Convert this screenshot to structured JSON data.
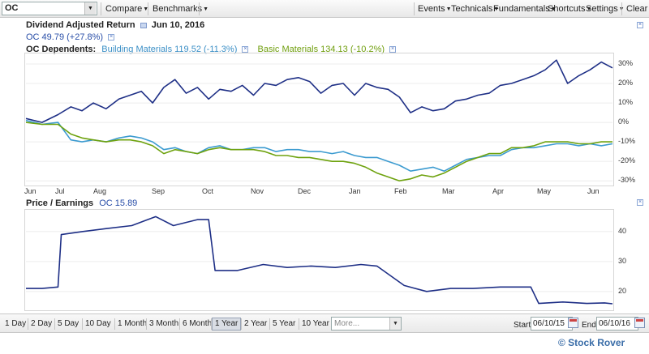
{
  "toolbar": {
    "symbol": "OC",
    "left_menus": [
      "Compare",
      "Benchmarks"
    ],
    "right_menus": [
      "Events",
      "Technicals",
      "Fundamentals",
      "Shortcuts",
      "Settings"
    ],
    "clear": "Clear"
  },
  "chart1": {
    "title": "Dividend Adjusted Return",
    "date": "Jun 10, 2016",
    "main_series": "OC 49.79 (+27.8%)",
    "dependents_label": "OC Dependents:",
    "dep1": "Building Materials 119.52 (-11.3%)",
    "dep2": "Basic Materials 134.13 (-10.2%)",
    "y_ticks": [
      "30%",
      "20%",
      "10%",
      "0%",
      "-10%",
      "-20%",
      "-30%"
    ],
    "x_ticks": [
      "Jun",
      "Jul",
      "Aug",
      "Sep",
      "Oct",
      "Nov",
      "Dec",
      "Jan",
      "Feb",
      "Mar",
      "Apr",
      "May",
      "Jun"
    ]
  },
  "chart2": {
    "title": "Price / Earnings",
    "series_label": "OC 15.89",
    "y_ticks": [
      "40",
      "30",
      "20"
    ]
  },
  "bottombar": {
    "ranges": [
      "1 Day",
      "2 Day",
      "5 Day",
      "10 Day",
      "1 Month",
      "3 Month",
      "6 Month",
      "1 Year",
      "2 Year",
      "5 Year",
      "10 Year"
    ],
    "active_range": "1 Year",
    "more_placeholder": "More...",
    "start_label": "Start",
    "start_value": "06/10/15",
    "end_label": "End",
    "end_value": "06/10/16"
  },
  "copyright": "© Stock Rover",
  "colors": {
    "oc": "#1e2f86",
    "building": "#3c9bd0",
    "basic": "#6ea20e"
  },
  "chart_data": [
    {
      "type": "line",
      "ylabel": "",
      "ylim": [
        -32,
        35
      ],
      "x": [
        "2015-06-10",
        "2015-06-20",
        "2015-06-30",
        "2015-07-08",
        "2015-07-15",
        "2015-07-22",
        "2015-07-30",
        "2015-08-07",
        "2015-08-14",
        "2015-08-21",
        "2015-08-28",
        "2015-09-04",
        "2015-09-11",
        "2015-09-18",
        "2015-09-25",
        "2015-10-02",
        "2015-10-09",
        "2015-10-16",
        "2015-10-23",
        "2015-10-30",
        "2015-11-06",
        "2015-11-13",
        "2015-11-20",
        "2015-11-27",
        "2015-12-04",
        "2015-12-11",
        "2015-12-18",
        "2015-12-25",
        "2016-01-01",
        "2016-01-08",
        "2016-01-15",
        "2016-01-22",
        "2016-01-29",
        "2016-02-05",
        "2016-02-12",
        "2016-02-19",
        "2016-02-26",
        "2016-03-04",
        "2016-03-11",
        "2016-03-18",
        "2016-03-25",
        "2016-04-01",
        "2016-04-08",
        "2016-04-15",
        "2016-04-22",
        "2016-04-29",
        "2016-05-06",
        "2016-05-13",
        "2016-05-20",
        "2016-05-27",
        "2016-06-03",
        "2016-06-10"
      ],
      "series": [
        {
          "name": "OC 49.79 (+27.8%)",
          "values": [
            2,
            0,
            4,
            8,
            6,
            10,
            7,
            12,
            14,
            16,
            10,
            18,
            22,
            15,
            18,
            12,
            17,
            16,
            19,
            14,
            20,
            19,
            22,
            23,
            21,
            15,
            19,
            20,
            14,
            20,
            18,
            17,
            13,
            5,
            8,
            6,
            7,
            11,
            12,
            14,
            15,
            19,
            20,
            22,
            24,
            27,
            32,
            20,
            24,
            27,
            31,
            28
          ]
        },
        {
          "name": "Building Materials 119.52 (-11.3%)",
          "values": [
            1,
            -1,
            0,
            -9,
            -10,
            -9,
            -10,
            -8,
            -7,
            -8,
            -10,
            -14,
            -13,
            -15,
            -16,
            -13,
            -12,
            -14,
            -14,
            -13,
            -13,
            -15,
            -14,
            -14,
            -15,
            -15,
            -16,
            -15,
            -17,
            -18,
            -18,
            -20,
            -22,
            -25,
            -24,
            -23,
            -25,
            -22,
            -19,
            -18,
            -17,
            -17,
            -14,
            -13,
            -13,
            -12,
            -11,
            -11,
            -12,
            -11,
            -12,
            -11
          ]
        },
        {
          "name": "Basic Materials 134.13 (-10.2%)",
          "values": [
            0,
            -1,
            -1,
            -6,
            -8,
            -9,
            -10,
            -9,
            -9,
            -10,
            -12,
            -16,
            -14,
            -15,
            -16,
            -14,
            -13,
            -14,
            -14,
            -14,
            -15,
            -17,
            -17,
            -18,
            -18,
            -19,
            -20,
            -20,
            -21,
            -23,
            -26,
            -28,
            -30,
            -29,
            -27,
            -28,
            -26,
            -23,
            -20,
            -18,
            -16,
            -16,
            -13,
            -13,
            -12,
            -10,
            -10,
            -10,
            -11,
            -11,
            -10,
            -10
          ]
        }
      ]
    },
    {
      "type": "line",
      "ylabel": "",
      "ylim": [
        14,
        47
      ],
      "x": [
        "2015-06-10",
        "2015-06-20",
        "2015-06-30",
        "2015-07-02",
        "2015-07-15",
        "2015-07-30",
        "2015-08-15",
        "2015-08-30",
        "2015-09-10",
        "2015-09-25",
        "2015-10-02",
        "2015-10-06",
        "2015-10-20",
        "2015-11-05",
        "2015-11-20",
        "2015-12-05",
        "2015-12-20",
        "2016-01-05",
        "2016-01-15",
        "2016-02-01",
        "2016-02-15",
        "2016-03-01",
        "2016-03-15",
        "2016-04-01",
        "2016-04-20",
        "2016-04-25",
        "2016-05-10",
        "2016-05-25",
        "2016-06-05",
        "2016-06-10"
      ],
      "series": [
        {
          "name": "OC 15.89",
          "values": [
            21,
            21,
            21.5,
            39,
            40,
            41,
            42,
            45,
            42,
            44,
            44,
            27,
            27,
            29,
            28,
            28.5,
            28,
            29,
            28.5,
            22,
            20,
            21,
            21,
            21.5,
            21.5,
            16,
            16.5,
            16,
            16.2,
            15.9
          ]
        }
      ]
    }
  ]
}
